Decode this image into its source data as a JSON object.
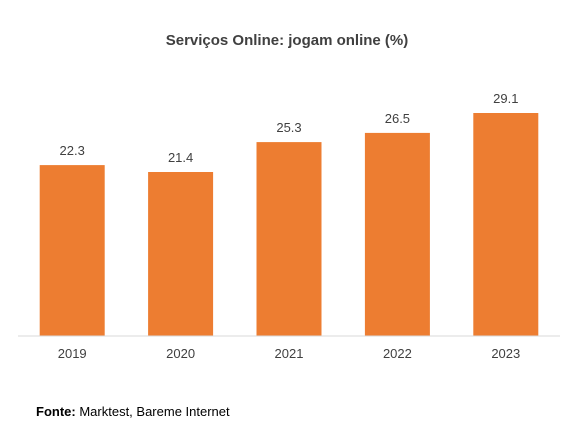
{
  "chart_data": {
    "type": "bar",
    "title": "Serviços Online: jogam online (%)",
    "categories": [
      "2019",
      "2020",
      "2021",
      "2022",
      "2023"
    ],
    "values": [
      22.3,
      21.4,
      25.3,
      26.5,
      29.1
    ],
    "value_labels": [
      "22.3",
      "21.4",
      "25.3",
      "26.5",
      "29.1"
    ],
    "xlabel": "",
    "ylabel": "",
    "ylim": [
      0,
      29.1
    ],
    "grid": false,
    "legend": "none",
    "colors": {
      "bar": "#ED7D31",
      "axis": "#D9D9D9",
      "text": "#404040"
    }
  },
  "source": {
    "label": "Fonte:",
    "text": "Marktest, Bareme Internet"
  }
}
